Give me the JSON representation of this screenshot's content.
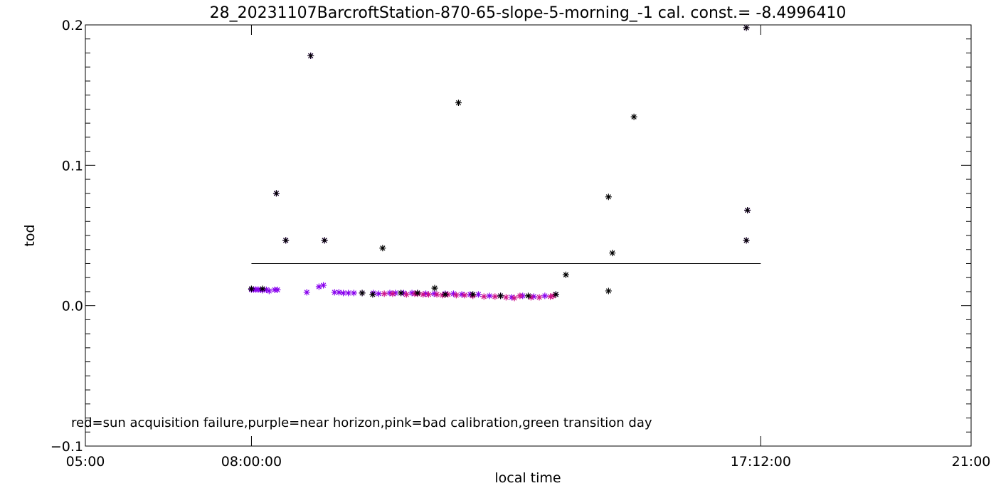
{
  "chart_data": {
    "type": "scatter",
    "title": "28_20231107BarcroftStation-870-65-slope-5-morning_-1 cal. const.= -8.4996410",
    "xlabel": "local time",
    "ylabel": "tod",
    "annotation": "red=sun acquisition failure,purple=near horizon,pink=bad calibration,green transition day",
    "xlim": [
      5.0,
      21.0
    ],
    "ylim": [
      -0.1,
      0.2
    ],
    "x_ticks": [
      {
        "value": 5.0,
        "label": "05:00"
      },
      {
        "value": 8.0,
        "label": "08:00:00"
      },
      {
        "value": 17.2,
        "label": "17:12:00"
      },
      {
        "value": 21.0,
        "label": "21:00"
      }
    ],
    "y_ticks": [
      {
        "value": -0.1,
        "label": "−0.1"
      },
      {
        "value": 0.0,
        "label": "0.0"
      },
      {
        "value": 0.1,
        "label": "0.1"
      },
      {
        "value": 0.2,
        "label": "0.2"
      }
    ],
    "colors": {
      "axes": "#000000",
      "purple": "#8800ee",
      "pink": "#cc1188",
      "black": "#000000"
    },
    "reference_line": {
      "y": 0.03,
      "x_start": 8.0,
      "x_end": 17.2
    },
    "series": [
      {
        "color": "purple",
        "points": [
          [
            8.0,
            0.0115
          ],
          [
            8.04,
            0.0115
          ],
          [
            8.08,
            0.0115
          ],
          [
            8.12,
            0.0115
          ],
          [
            8.16,
            0.0113
          ],
          [
            8.2,
            0.011
          ],
          [
            8.27,
            0.0113
          ],
          [
            8.32,
            0.0105
          ],
          [
            8.42,
            0.0113
          ],
          [
            8.47,
            0.0113
          ],
          [
            8.45,
            0.08
          ],
          [
            8.62,
            0.0465
          ],
          [
            9.0,
            0.0095
          ],
          [
            9.07,
            0.178
          ],
          [
            9.22,
            0.0135
          ],
          [
            9.3,
            0.0145
          ],
          [
            9.32,
            0.0465
          ],
          [
            9.5,
            0.0095
          ],
          [
            9.58,
            0.0095
          ],
          [
            9.66,
            0.009
          ],
          [
            9.75,
            0.009
          ],
          [
            9.85,
            0.009
          ],
          [
            10.0,
            0.009
          ],
          [
            10.2,
            0.009
          ],
          [
            10.3,
            0.0085
          ],
          [
            10.5,
            0.009
          ],
          [
            10.6,
            0.009
          ],
          [
            10.75,
            0.009
          ],
          [
            10.9,
            0.009
          ],
          [
            11.0,
            0.009
          ],
          [
            11.15,
            0.0085
          ],
          [
            11.3,
            0.0085
          ],
          [
            11.5,
            0.0085
          ],
          [
            11.65,
            0.0085
          ],
          [
            11.8,
            0.008
          ],
          [
            11.95,
            0.008
          ],
          [
            12.1,
            0.008
          ],
          [
            12.3,
            0.007
          ],
          [
            12.5,
            0.007
          ],
          [
            12.7,
            0.006
          ],
          [
            12.9,
            0.007
          ],
          [
            13.1,
            0.0065
          ],
          [
            13.3,
            0.007
          ],
          [
            13.5,
            0.008
          ],
          [
            16.94,
            0.198
          ],
          [
            16.96,
            0.068
          ],
          [
            16.94,
            0.0465
          ]
        ]
      },
      {
        "color": "pink",
        "points": [
          [
            11.0,
            0.0085
          ],
          [
            11.1,
            0.008
          ],
          [
            11.2,
            0.008
          ],
          [
            11.35,
            0.008
          ],
          [
            11.45,
            0.0075
          ],
          [
            11.55,
            0.008
          ],
          [
            11.7,
            0.0075
          ],
          [
            11.85,
            0.0075
          ],
          [
            12.0,
            0.007
          ],
          [
            12.2,
            0.0065
          ],
          [
            12.4,
            0.0065
          ],
          [
            12.6,
            0.006
          ],
          [
            12.75,
            0.0055
          ],
          [
            12.85,
            0.007
          ],
          [
            13.05,
            0.006
          ],
          [
            13.2,
            0.006
          ],
          [
            13.4,
            0.0065
          ],
          [
            13.45,
            0.007
          ],
          [
            10.4,
            0.0085
          ],
          [
            10.55,
            0.0085
          ],
          [
            10.8,
            0.008
          ],
          [
            10.95,
            0.0085
          ]
        ]
      },
      {
        "color": "black",
        "points": [
          [
            8.0,
            0.012
          ],
          [
            8.2,
            0.012
          ],
          [
            8.45,
            0.08
          ],
          [
            8.62,
            0.0465
          ],
          [
            9.07,
            0.178
          ],
          [
            9.32,
            0.0465
          ],
          [
            10.0,
            0.009
          ],
          [
            10.19,
            0.008
          ],
          [
            10.37,
            0.041
          ],
          [
            10.7,
            0.009
          ],
          [
            11.0,
            0.009
          ],
          [
            11.31,
            0.0125
          ],
          [
            11.5,
            0.008
          ],
          [
            11.74,
            0.1445
          ],
          [
            12.0,
            0.008
          ],
          [
            12.5,
            0.007
          ],
          [
            13.0,
            0.007
          ],
          [
            13.5,
            0.008
          ],
          [
            13.68,
            0.022
          ],
          [
            14.45,
            0.0775
          ],
          [
            14.45,
            0.0105
          ],
          [
            14.52,
            0.0375
          ],
          [
            14.91,
            0.1345
          ],
          [
            16.94,
            0.198
          ],
          [
            16.96,
            0.068
          ],
          [
            16.94,
            0.0465
          ]
        ]
      }
    ],
    "grid": false,
    "legend": "none"
  }
}
